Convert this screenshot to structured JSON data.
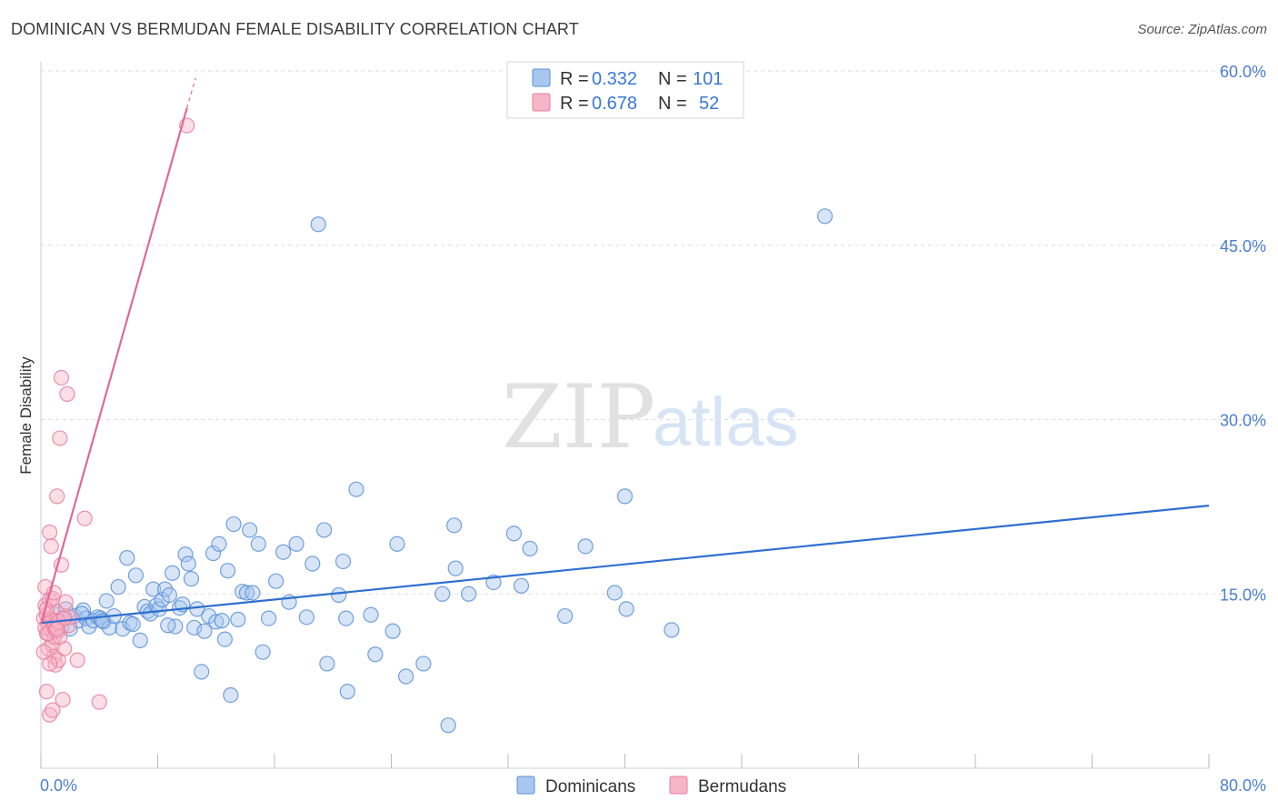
{
  "title": "DOMINICAN VS BERMUDAN FEMALE DISABILITY CORRELATION CHART",
  "source": "Source: ZipAtlas.com",
  "watermark": {
    "part1": "ZIP",
    "part2": "atlas"
  },
  "legend": {
    "rows": [
      {
        "r_label": "R = ",
        "r_value": "0.332",
        "n_label": "N = ",
        "n_value": "101"
      },
      {
        "r_label": "R = ",
        "r_value": "0.678",
        "n_label": "N = ",
        "n_value": "52"
      }
    ]
  },
  "colors": {
    "blue_fill": "#a9c6ee",
    "blue_stroke": "#5b90d8",
    "blue_line": "#2f6fd0",
    "pink_fill": "#f6b5c8",
    "pink_stroke": "#e87fa0",
    "pink_line": "#e06a93",
    "grid": "#dddddd",
    "axis_text": "#4a7fcf"
  },
  "chart_data": {
    "type": "scatter",
    "title": "DOMINICAN VS BERMUDAN FEMALE DISABILITY CORRELATION CHART",
    "xlabel": "",
    "ylabel": "Female Disability",
    "xlim": [
      0,
      80
    ],
    "ylim": [
      0,
      60
    ],
    "x_tick_labels": [
      "0.0%",
      "80.0%"
    ],
    "y_ticks": [
      15,
      30,
      45,
      60
    ],
    "y_tick_labels": [
      "15.0%",
      "30.0%",
      "45.0%",
      "60.0%"
    ],
    "grid": true,
    "legend_position": "top-center",
    "series": [
      {
        "name": "Dominicans",
        "r": 0.332,
        "n": 101,
        "trend": {
          "x": [
            0,
            80
          ],
          "y": [
            12.5,
            22.6
          ]
        },
        "points": [
          [
            0.6,
            12.8
          ],
          [
            1.0,
            13.2
          ],
          [
            1.4,
            12.1
          ],
          [
            1.7,
            13.7
          ],
          [
            2.0,
            12.0
          ],
          [
            2.3,
            13.1
          ],
          [
            2.6,
            12.7
          ],
          [
            2.9,
            13.6
          ],
          [
            3.1,
            12.9
          ],
          [
            3.3,
            12.2
          ],
          [
            3.6,
            12.7
          ],
          [
            3.9,
            13.0
          ],
          [
            4.1,
            12.9
          ],
          [
            4.3,
            12.6
          ],
          [
            4.5,
            14.4
          ],
          [
            4.7,
            12.1
          ],
          [
            5.0,
            13.1
          ],
          [
            5.3,
            15.6
          ],
          [
            5.6,
            12.0
          ],
          [
            5.9,
            18.1
          ],
          [
            6.1,
            12.5
          ],
          [
            6.3,
            12.4
          ],
          [
            6.5,
            16.6
          ],
          [
            6.8,
            11.0
          ],
          [
            7.1,
            13.9
          ],
          [
            7.3,
            13.5
          ],
          [
            7.5,
            13.3
          ],
          [
            7.7,
            15.4
          ],
          [
            7.9,
            14.0
          ],
          [
            8.1,
            13.7
          ],
          [
            8.3,
            14.5
          ],
          [
            8.5,
            15.4
          ],
          [
            8.8,
            14.9
          ],
          [
            9.0,
            16.8
          ],
          [
            9.2,
            12.2
          ],
          [
            9.5,
            13.8
          ],
          [
            9.7,
            14.1
          ],
          [
            9.9,
            18.4
          ],
          [
            10.1,
            17.6
          ],
          [
            10.3,
            16.3
          ],
          [
            10.5,
            12.1
          ],
          [
            10.7,
            13.7
          ],
          [
            11.0,
            8.3
          ],
          [
            11.2,
            11.8
          ],
          [
            11.5,
            13.1
          ],
          [
            11.8,
            18.5
          ],
          [
            12.0,
            12.6
          ],
          [
            12.2,
            19.3
          ],
          [
            12.4,
            12.7
          ],
          [
            12.6,
            11.1
          ],
          [
            12.8,
            17.0
          ],
          [
            13.0,
            6.3
          ],
          [
            13.2,
            21.0
          ],
          [
            13.5,
            12.8
          ],
          [
            13.8,
            15.2
          ],
          [
            14.1,
            15.1
          ],
          [
            14.3,
            20.5
          ],
          [
            14.5,
            15.1
          ],
          [
            14.9,
            19.3
          ],
          [
            15.2,
            10.0
          ],
          [
            15.6,
            12.9
          ],
          [
            16.1,
            16.1
          ],
          [
            16.6,
            18.6
          ],
          [
            17.0,
            14.3
          ],
          [
            17.5,
            19.3
          ],
          [
            18.2,
            13.0
          ],
          [
            18.6,
            17.6
          ],
          [
            19.0,
            46.8
          ],
          [
            19.4,
            20.5
          ],
          [
            19.6,
            9.0
          ],
          [
            20.4,
            14.9
          ],
          [
            20.7,
            17.8
          ],
          [
            20.9,
            12.9
          ],
          [
            21.0,
            6.6
          ],
          [
            21.6,
            24.0
          ],
          [
            22.6,
            13.2
          ],
          [
            22.9,
            9.8
          ],
          [
            24.1,
            11.8
          ],
          [
            24.4,
            19.3
          ],
          [
            25.0,
            7.9
          ],
          [
            26.2,
            9.0
          ],
          [
            27.5,
            15.0
          ],
          [
            27.9,
            3.7
          ],
          [
            28.3,
            20.9
          ],
          [
            28.4,
            17.2
          ],
          [
            29.3,
            15.0
          ],
          [
            31.0,
            16.0
          ],
          [
            32.4,
            20.2
          ],
          [
            32.9,
            15.7
          ],
          [
            33.5,
            18.9
          ],
          [
            35.9,
            13.1
          ],
          [
            37.3,
            19.1
          ],
          [
            39.3,
            15.1
          ],
          [
            40.0,
            23.4
          ],
          [
            40.1,
            13.7
          ],
          [
            43.2,
            11.9
          ],
          [
            53.7,
            47.5
          ],
          [
            1.2,
            12.7
          ],
          [
            2.8,
            13.3
          ],
          [
            4.2,
            12.7
          ],
          [
            8.7,
            12.3
          ]
        ]
      },
      {
        "name": "Bermudans",
        "r": 0.678,
        "n": 52,
        "trend": {
          "x": [
            0,
            10
          ],
          "y": [
            12.4,
            56.8
          ]
        },
        "trend_dashed": {
          "x": [
            10,
            10.6
          ],
          "y": [
            56.8,
            59.4
          ]
        },
        "points": [
          [
            0.2,
            12.9
          ],
          [
            0.3,
            14.0
          ],
          [
            0.3,
            15.6
          ],
          [
            0.4,
            11.6
          ],
          [
            0.4,
            13.2
          ],
          [
            0.5,
            12.4
          ],
          [
            0.5,
            10.3
          ],
          [
            0.6,
            14.5
          ],
          [
            0.6,
            20.3
          ],
          [
            0.7,
            11.9
          ],
          [
            0.7,
            19.1
          ],
          [
            0.8,
            12.7
          ],
          [
            0.8,
            10.6
          ],
          [
            0.9,
            11.3
          ],
          [
            0.9,
            9.6
          ],
          [
            1.0,
            12.5
          ],
          [
            1.0,
            8.9
          ],
          [
            1.1,
            13.4
          ],
          [
            1.1,
            23.4
          ],
          [
            1.2,
            11.8
          ],
          [
            1.2,
            9.3
          ],
          [
            1.3,
            28.4
          ],
          [
            1.4,
            33.6
          ],
          [
            1.4,
            17.5
          ],
          [
            1.5,
            12.9
          ],
          [
            1.6,
            10.3
          ],
          [
            1.7,
            14.3
          ],
          [
            1.8,
            32.2
          ],
          [
            1.9,
            12.3
          ],
          [
            2.0,
            13.0
          ],
          [
            0.4,
            6.6
          ],
          [
            0.6,
            4.6
          ],
          [
            0.8,
            5.0
          ],
          [
            1.5,
            5.9
          ],
          [
            3.0,
            21.5
          ],
          [
            2.5,
            9.3
          ],
          [
            4.0,
            5.7
          ],
          [
            10.0,
            55.3
          ],
          [
            0.3,
            12.1
          ],
          [
            0.5,
            11.6
          ],
          [
            0.7,
            12.8
          ],
          [
            0.9,
            12.2
          ],
          [
            1.0,
            11.9
          ],
          [
            1.2,
            12.6
          ],
          [
            0.4,
            13.7
          ],
          [
            0.6,
            9.0
          ],
          [
            0.8,
            14.6
          ],
          [
            1.3,
            11.3
          ],
          [
            1.6,
            12.9
          ],
          [
            0.2,
            10.0
          ],
          [
            0.9,
            15.1
          ],
          [
            1.1,
            12.0
          ]
        ]
      }
    ]
  }
}
